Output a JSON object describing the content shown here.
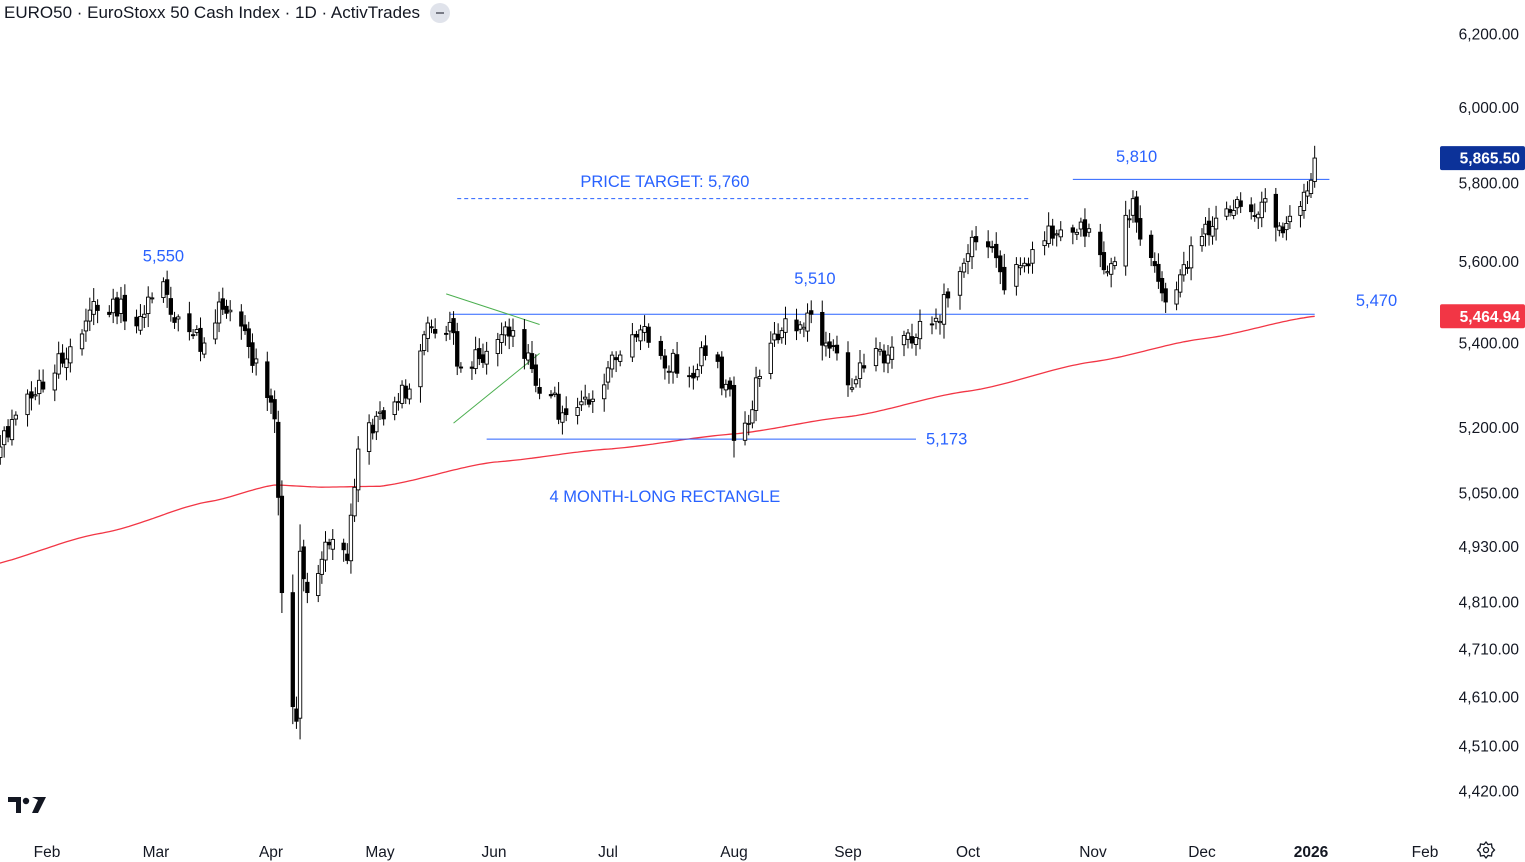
{
  "header": {
    "title": "EURO50 · EuroStoxx 50 Cash Index · 1D · ActivTrades"
  },
  "colors": {
    "up_candle": "#ffffff",
    "down_candle": "#000000",
    "wick": "#000000",
    "moving_average": "#f23645",
    "annotation": "#2962ff",
    "triangle_lines": "#4caf50",
    "current_price_badge": "#0c3299",
    "ma_price_badge": "#f23645"
  },
  "chart_data": {
    "type": "candlestick",
    "symbol": "EURO50",
    "interval": "1D",
    "scale": "log",
    "y_axis_labels": [
      "6,200.00",
      "6,000.00",
      "5,800.00",
      "5,600.00",
      "5,400.00",
      "5,200.00",
      "5,050.00",
      "4,930.00",
      "4,810.00",
      "4,710.00",
      "4,610.00",
      "4,510.00",
      "4,420.00"
    ],
    "x_axis_labels": [
      "Feb",
      "Mar",
      "Apr",
      "May",
      "Jun",
      "Jul",
      "Aug",
      "Sep",
      "Oct",
      "Nov",
      "Dec",
      "2026",
      "Feb"
    ],
    "x_axis_bold_label": "2026",
    "current_price": "5,865.50",
    "ma_value": "5,464.94",
    "ma_label": "",
    "price_anchors": [
      {
        "date": "2025-01-17",
        "close": 5140
      },
      {
        "date": "2025-01-31",
        "close": 5290
      },
      {
        "date": "2025-02-12",
        "close": 5480
      },
      {
        "date": "2025-02-26",
        "close": 5470
      },
      {
        "date": "2025-03-03",
        "close": 5550
      },
      {
        "date": "2025-03-06",
        "close": 5450
      },
      {
        "date": "2025-03-14",
        "close": 5400
      },
      {
        "date": "2025-03-18",
        "close": 5500
      },
      {
        "date": "2025-03-25",
        "close": 5430
      },
      {
        "date": "2025-03-31",
        "close": 5270
      },
      {
        "date": "2025-04-02",
        "close": 5220
      },
      {
        "date": "2025-04-03",
        "close": 5040
      },
      {
        "date": "2025-04-04",
        "close": 4830
      },
      {
        "date": "2025-04-07",
        "close": 4590
      },
      {
        "date": "2025-04-08",
        "close": 4560
      },
      {
        "date": "2025-04-09",
        "close": 4920
      },
      {
        "date": "2025-04-11",
        "close": 4830
      },
      {
        "date": "2025-04-16",
        "close": 4940
      },
      {
        "date": "2025-04-22",
        "close": 4900
      },
      {
        "date": "2025-04-25",
        "close": 5150
      },
      {
        "date": "2025-05-02",
        "close": 5220
      },
      {
        "date": "2025-05-09",
        "close": 5290
      },
      {
        "date": "2025-05-13",
        "close": 5420
      },
      {
        "date": "2025-05-20",
        "close": 5450
      },
      {
        "date": "2025-05-23",
        "close": 5340
      },
      {
        "date": "2025-05-30",
        "close": 5380
      },
      {
        "date": "2025-06-06",
        "close": 5430
      },
      {
        "date": "2025-06-13",
        "close": 5280
      },
      {
        "date": "2025-06-20",
        "close": 5230
      },
      {
        "date": "2025-06-24",
        "close": 5260
      },
      {
        "date": "2025-06-30",
        "close": 5300
      },
      {
        "date": "2025-07-03",
        "close": 5360
      },
      {
        "date": "2025-07-07",
        "close": 5420
      },
      {
        "date": "2025-07-10",
        "close": 5440
      },
      {
        "date": "2025-07-14",
        "close": 5370
      },
      {
        "date": "2025-07-21",
        "close": 5320
      },
      {
        "date": "2025-07-25",
        "close": 5370
      },
      {
        "date": "2025-07-31",
        "close": 5290
      },
      {
        "date": "2025-08-01",
        "close": 5170
      },
      {
        "date": "2025-08-04",
        "close": 5210
      },
      {
        "date": "2025-08-08",
        "close": 5320
      },
      {
        "date": "2025-08-14",
        "close": 5430
      },
      {
        "date": "2025-08-22",
        "close": 5470
      },
      {
        "date": "2025-08-26",
        "close": 5400
      },
      {
        "date": "2025-09-01",
        "close": 5300
      },
      {
        "date": "2025-09-05",
        "close": 5340
      },
      {
        "date": "2025-09-12",
        "close": 5390
      },
      {
        "date": "2025-09-17",
        "close": 5400
      },
      {
        "date": "2025-09-23",
        "close": 5460
      },
      {
        "date": "2025-09-26",
        "close": 5510
      },
      {
        "date": "2025-10-01",
        "close": 5620
      },
      {
        "date": "2025-10-03",
        "close": 5650
      },
      {
        "date": "2025-10-08",
        "close": 5610
      },
      {
        "date": "2025-10-10",
        "close": 5530
      },
      {
        "date": "2025-10-14",
        "close": 5590
      },
      {
        "date": "2025-10-21",
        "close": 5690
      },
      {
        "date": "2025-10-24",
        "close": 5680
      },
      {
        "date": "2025-10-29",
        "close": 5700
      },
      {
        "date": "2025-11-04",
        "close": 5580
      },
      {
        "date": "2025-11-07",
        "close": 5600
      },
      {
        "date": "2025-11-12",
        "close": 5760
      },
      {
        "date": "2025-11-13",
        "close": 5700
      },
      {
        "date": "2025-11-18",
        "close": 5590
      },
      {
        "date": "2025-11-21",
        "close": 5500
      },
      {
        "date": "2025-11-24",
        "close": 5530
      },
      {
        "date": "2025-11-28",
        "close": 5640
      },
      {
        "date": "2025-12-05",
        "close": 5710
      },
      {
        "date": "2025-12-12",
        "close": 5740
      },
      {
        "date": "2025-12-17",
        "close": 5720
      },
      {
        "date": "2025-12-19",
        "close": 5760
      },
      {
        "date": "2025-12-23",
        "close": 5690
      },
      {
        "date": "2025-12-29",
        "close": 5740
      },
      {
        "date": "2025-12-31",
        "close": 5780
      },
      {
        "date": "2026-01-02",
        "close": 5865.5
      }
    ],
    "moving_average_anchors": [
      {
        "date": "2025-01-15",
        "value": 4885
      },
      {
        "date": "2025-02-15",
        "value": 4960
      },
      {
        "date": "2025-03-15",
        "value": 5030
      },
      {
        "date": "2025-04-02",
        "value": 5068
      },
      {
        "date": "2025-04-15",
        "value": 5063
      },
      {
        "date": "2025-05-01",
        "value": 5065
      },
      {
        "date": "2025-06-01",
        "value": 5120
      },
      {
        "date": "2025-07-01",
        "value": 5150
      },
      {
        "date": "2025-08-01",
        "value": 5185
      },
      {
        "date": "2025-09-01",
        "value": 5225
      },
      {
        "date": "2025-10-01",
        "value": 5285
      },
      {
        "date": "2025-11-01",
        "value": 5355
      },
      {
        "date": "2025-12-01",
        "value": 5410
      },
      {
        "date": "2026-01-02",
        "value": 5465
      }
    ],
    "annotations": [
      {
        "text": "5,550"
      },
      {
        "text": "PRICE TARGET: 5,760"
      },
      {
        "text": "5,510"
      },
      {
        "text": "5,810"
      },
      {
        "text": "5,470"
      },
      {
        "text": "5,173"
      },
      {
        "text": "4 MONTH-LONG RECTANGLE"
      }
    ],
    "lines": [
      {
        "type": "horizontal",
        "value": 5470,
        "from": "2025-05-20",
        "to": "2026-01-02"
      },
      {
        "type": "horizontal",
        "value": 5173,
        "from": "2025-05-30",
        "to": "2025-09-18"
      },
      {
        "type": "horizontal-dashed",
        "value": 5760,
        "from": "2025-05-22",
        "to": "2025-10-16"
      },
      {
        "type": "horizontal",
        "value": 5810,
        "from": "2025-10-27",
        "to": "2026-01-06"
      },
      {
        "type": "triangle-upper",
        "from": "2025-05-19",
        "to": "2025-06-13"
      },
      {
        "type": "triangle-lower",
        "from": "2025-05-21",
        "to": "2025-06-13"
      }
    ]
  }
}
